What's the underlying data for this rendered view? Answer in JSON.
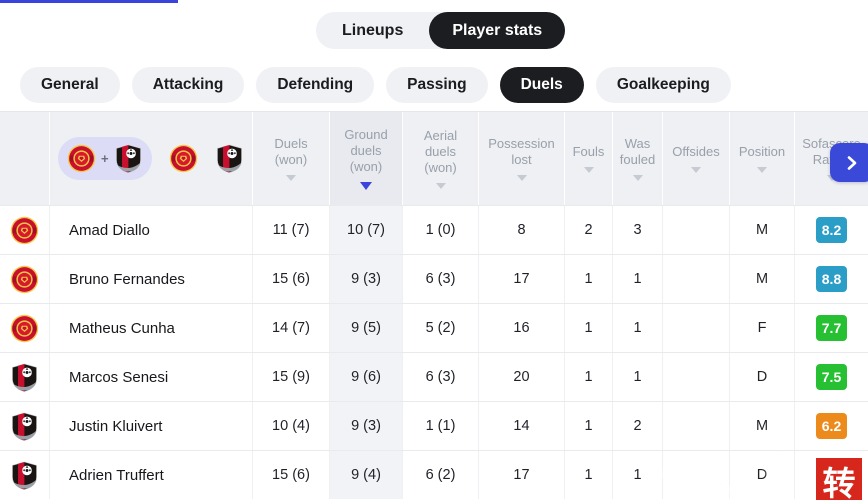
{
  "accent_color": "#3b43dd",
  "view_tabs": [
    {
      "label": "Lineups",
      "active": false
    },
    {
      "label": "Player stats",
      "active": true
    }
  ],
  "stat_tabs": [
    {
      "label": "General",
      "active": false
    },
    {
      "label": "Attacking",
      "active": false
    },
    {
      "label": "Defending",
      "active": false
    },
    {
      "label": "Passing",
      "active": false
    },
    {
      "label": "Duels",
      "active": true
    },
    {
      "label": "Goalkeeping",
      "active": false
    }
  ],
  "team_filter": {
    "both_icon": "man-utd-crest + bournemouth-crest",
    "plus_sign": "+",
    "home_icon": "man-utd-crest",
    "away_icon": "bournemouth-crest",
    "selected": "both"
  },
  "table": {
    "stat_columns": [
      {
        "label": "Duels\n(won)",
        "sort": "inactive",
        "highlight": false
      },
      {
        "label": "Ground\nduels\n(won)",
        "sort": "active",
        "highlight": true
      },
      {
        "label": "Aerial\nduels\n(won)",
        "sort": "inactive",
        "highlight": false
      },
      {
        "label": "Possession\nlost",
        "sort": "inactive",
        "highlight": false
      },
      {
        "label": "Fouls",
        "sort": "inactive",
        "highlight": false
      },
      {
        "label": "Was\nfouled",
        "sort": "inactive",
        "highlight": false
      },
      {
        "label": "Offsides",
        "sort": "inactive",
        "highlight": false
      },
      {
        "label": "Position",
        "sort": "inactive",
        "highlight": false
      },
      {
        "label": "Sofascore\nRating",
        "sort": "inactive",
        "highlight": false
      }
    ],
    "rows": [
      {
        "team": "manutd",
        "name": "Amad Diallo",
        "stats": [
          "11 (7)",
          "10 (7)",
          "1 (0)",
          "8",
          "2",
          "3",
          ""
        ],
        "position": "M",
        "rating": "8.2",
        "rating_color": "#2b9ec8"
      },
      {
        "team": "manutd",
        "name": "Bruno Fernandes",
        "stats": [
          "15 (6)",
          "9 (3)",
          "6 (3)",
          "17",
          "1",
          "1",
          ""
        ],
        "position": "M",
        "rating": "8.8",
        "rating_color": "#2b9ec8"
      },
      {
        "team": "manutd",
        "name": "Matheus Cunha",
        "stats": [
          "14 (7)",
          "9 (5)",
          "5 (2)",
          "16",
          "1",
          "1",
          ""
        ],
        "position": "F",
        "rating": "7.7",
        "rating_color": "#27c032"
      },
      {
        "team": "bournemouth",
        "name": "Marcos Senesi",
        "stats": [
          "15 (9)",
          "9 (6)",
          "6 (3)",
          "20",
          "1",
          "1",
          ""
        ],
        "position": "D",
        "rating": "7.5",
        "rating_color": "#27c032"
      },
      {
        "team": "bournemouth",
        "name": "Justin Kluivert",
        "stats": [
          "10 (4)",
          "9 (3)",
          "1 (1)",
          "14",
          "1",
          "2",
          ""
        ],
        "position": "M",
        "rating": "6.2",
        "rating_color": "#ec8a1b"
      },
      {
        "team": "bournemouth",
        "name": "Adrien Truffert",
        "stats": [
          "15 (6)",
          "9 (4)",
          "6 (2)",
          "17",
          "1",
          "1",
          ""
        ],
        "position": "D",
        "rating": "",
        "rating_color": ""
      }
    ]
  },
  "pagination": {
    "next_icon": "chevron-right"
  },
  "watermark": {
    "square_char": "转",
    "square_color": "#d7271d"
  }
}
